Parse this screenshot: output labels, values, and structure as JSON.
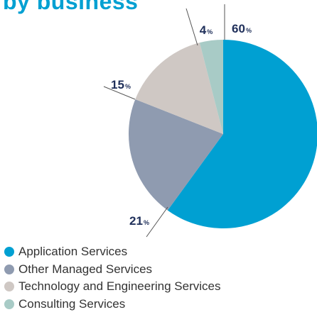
{
  "title": "by business",
  "chart_data": {
    "type": "pie",
    "categories": [
      "Application Services",
      "Other Managed Services",
      "Technology and Engineering Services",
      "Consulting Services"
    ],
    "values": [
      60,
      21,
      15,
      4
    ],
    "value_labels": [
      "60",
      "21",
      "15",
      "4"
    ],
    "unit": "%",
    "colors": [
      "#00a0d2",
      "#8f9bb0",
      "#cfc8c4",
      "#a8cbc6"
    ],
    "legend": "bottom-left"
  }
}
